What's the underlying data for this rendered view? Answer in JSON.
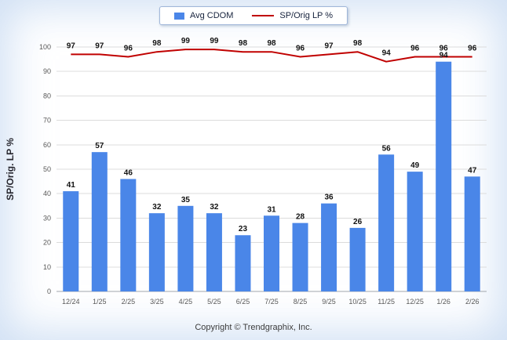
{
  "ylabel": "SP/Orig. LP %",
  "footer": "Copyright © Trendgraphix, Inc.",
  "colors": {
    "bar": "#4a86e8",
    "line": "#c00000",
    "grid": "#dcdcdc",
    "axis": "#a0a6ad",
    "tick_text": "#595959",
    "label_text": "#111111"
  },
  "chart_data": {
    "type": "bar+line",
    "title": "",
    "xlabel": "",
    "ylabel": "SP/Orig. LP %",
    "ylim": [
      0,
      100
    ],
    "ytick_step": 10,
    "grid": true,
    "legend_position": "top",
    "categories": [
      "12/24",
      "1/25",
      "2/25",
      "3/25",
      "4/25",
      "5/25",
      "6/25",
      "7/25",
      "8/25",
      "9/25",
      "10/25",
      "11/25",
      "12/25",
      "1/26",
      "2/26"
    ],
    "series": [
      {
        "name": "Avg CDOM",
        "type": "bar",
        "values": [
          41,
          57,
          46,
          32,
          35,
          32,
          23,
          31,
          28,
          36,
          26,
          56,
          49,
          94,
          47
        ]
      },
      {
        "name": "SP/Orig LP %",
        "type": "line",
        "values": [
          97,
          97,
          96,
          98,
          99,
          99,
          98,
          98,
          96,
          97,
          98,
          94,
          96,
          96,
          96
        ]
      }
    ]
  }
}
